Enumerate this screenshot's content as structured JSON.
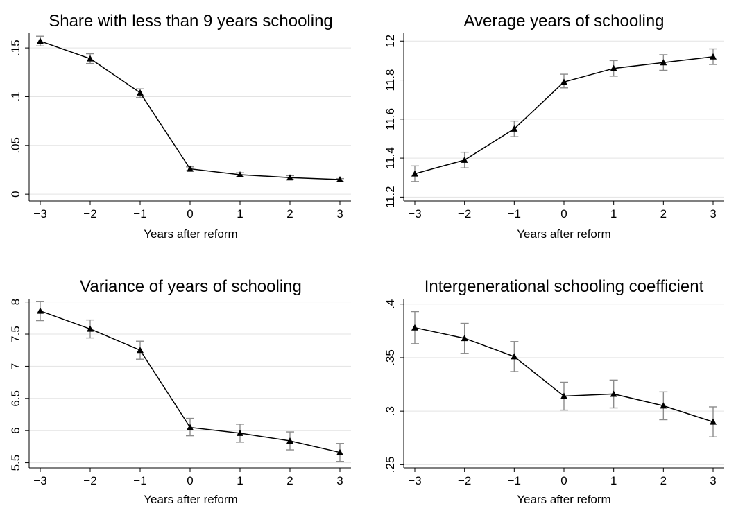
{
  "figure": {
    "colors": {
      "line": "#000000",
      "marker": "#000000",
      "error_bar": "#8c8c8c",
      "grid": "#e3e3e3",
      "background": "#ffffff"
    }
  },
  "chart_data": [
    {
      "type": "line",
      "title": "Share with less than 9 years schooling",
      "xlabel": "Years after reform",
      "ylabel": "",
      "x": [
        -3,
        -2,
        -1,
        0,
        1,
        2,
        3
      ],
      "x_tick_labels": [
        "−3",
        "−2",
        "−1",
        "0",
        "1",
        "2",
        "3"
      ],
      "ylim": [
        -0.007,
        0.165
      ],
      "y_ticks": [
        0,
        0.05,
        0.1,
        0.15
      ],
      "y_tick_labels": [
        "0",
        ".05",
        ".1",
        ".15"
      ],
      "grid": true,
      "marker": "triangle",
      "series": [
        {
          "values": [
            0.157,
            0.139,
            0.104,
            0.026,
            0.02,
            0.017,
            0.015
          ],
          "ci_low": [
            0.152,
            0.134,
            0.099,
            0.024,
            0.018,
            0.015,
            0.013
          ],
          "ci_high": [
            0.162,
            0.144,
            0.108,
            0.028,
            0.022,
            0.019,
            0.016
          ]
        }
      ]
    },
    {
      "type": "line",
      "title": "Average years of schooling",
      "xlabel": "Years after reform",
      "ylabel": "",
      "x": [
        -3,
        -2,
        -1,
        0,
        1,
        2,
        3
      ],
      "x_tick_labels": [
        "−3",
        "−2",
        "−1",
        "0",
        "1",
        "2",
        "3"
      ],
      "ylim": [
        11.18,
        12.04
      ],
      "y_ticks": [
        11.2,
        11.4,
        11.6,
        11.8,
        12
      ],
      "y_tick_labels": [
        "11.2",
        "11.4",
        "11.6",
        "11.8",
        "12"
      ],
      "grid": true,
      "marker": "triangle",
      "series": [
        {
          "values": [
            11.32,
            11.39,
            11.55,
            11.79,
            11.86,
            11.89,
            11.92
          ],
          "ci_low": [
            11.28,
            11.35,
            11.51,
            11.76,
            11.82,
            11.85,
            11.88
          ],
          "ci_high": [
            11.36,
            11.43,
            11.59,
            11.83,
            11.9,
            11.93,
            11.96
          ]
        }
      ]
    },
    {
      "type": "line",
      "title": "Variance of years of schooling",
      "xlabel": "Years after reform",
      "ylabel": "",
      "x": [
        -3,
        -2,
        -1,
        0,
        1,
        2,
        3
      ],
      "x_tick_labels": [
        "−3",
        "−2",
        "−1",
        "0",
        "1",
        "2",
        "3"
      ],
      "ylim": [
        5.42,
        8.05
      ],
      "y_ticks": [
        5.5,
        6,
        6.5,
        7,
        7.5,
        8
      ],
      "y_tick_labels": [
        "5.5",
        "6",
        "6.5",
        "7",
        "7.5",
        "8"
      ],
      "grid": true,
      "marker": "triangle",
      "series": [
        {
          "values": [
            7.86,
            7.58,
            7.25,
            6.05,
            5.96,
            5.84,
            5.66
          ],
          "ci_low": [
            7.71,
            7.44,
            7.11,
            5.92,
            5.82,
            5.7,
            5.52
          ],
          "ci_high": [
            8.01,
            7.72,
            7.39,
            6.19,
            6.1,
            5.98,
            5.8
          ]
        }
      ]
    },
    {
      "type": "line",
      "title": "Intergenerational schooling coefficient",
      "xlabel": "Years after reform",
      "ylabel": "",
      "x": [
        -3,
        -2,
        -1,
        0,
        1,
        2,
        3
      ],
      "x_tick_labels": [
        "−3",
        "−2",
        "−1",
        "0",
        "1",
        "2",
        "3"
      ],
      "ylim": [
        0.247,
        0.405
      ],
      "y_ticks": [
        0.25,
        0.3,
        0.35,
        0.4
      ],
      "y_tick_labels": [
        ".25",
        ".3",
        ".35",
        ".4"
      ],
      "grid": true,
      "marker": "triangle",
      "series": [
        {
          "values": [
            0.378,
            0.368,
            0.351,
            0.314,
            0.316,
            0.305,
            0.29
          ],
          "ci_low": [
            0.363,
            0.354,
            0.337,
            0.301,
            0.303,
            0.292,
            0.276
          ],
          "ci_high": [
            0.393,
            0.382,
            0.365,
            0.327,
            0.329,
            0.318,
            0.304
          ]
        }
      ]
    }
  ]
}
